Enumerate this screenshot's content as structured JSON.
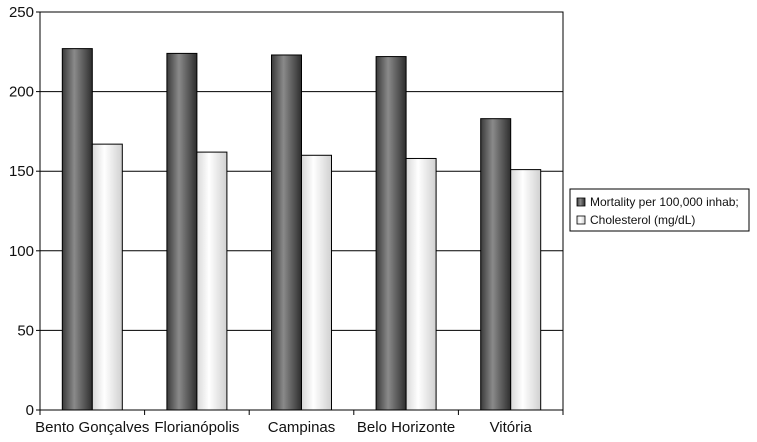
{
  "chart_data": {
    "type": "bar",
    "categories": [
      "Bento Gonçalves",
      "Florianópolis",
      "Campinas",
      "Belo Horizonte",
      "Vitória"
    ],
    "series": [
      {
        "name": "Mortality per 100,000 inhab;",
        "values": [
          227,
          224,
          223,
          222,
          183
        ],
        "color": "#555555"
      },
      {
        "name": "Cholesterol (mg/dL)",
        "values": [
          167,
          162,
          160,
          158,
          151
        ],
        "color": "#f2f2f2"
      }
    ],
    "ylim": [
      0,
      250
    ],
    "yticks": [
      "0",
      "50",
      "100",
      "150",
      "200",
      "250"
    ],
    "grid": true,
    "legend": "right"
  }
}
